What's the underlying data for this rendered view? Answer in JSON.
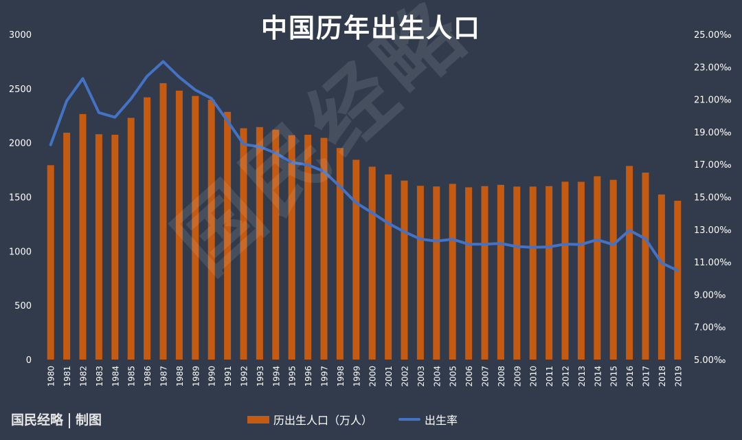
{
  "title": "中国历年出生人口",
  "credit": {
    "org": "国民经略",
    "note": "制图"
  },
  "watermark": "国民经略",
  "colors": {
    "background": "#323b4c",
    "bar": "#c55a11",
    "line": "#4472c4",
    "text": "#ffffff"
  },
  "chart_data": {
    "type": "bar+line",
    "categories": [
      "1980",
      "1981",
      "1982",
      "1983",
      "1984",
      "1985",
      "1986",
      "1987",
      "1988",
      "1989",
      "1990",
      "1991",
      "1992",
      "1993",
      "1994",
      "1995",
      "1996",
      "1997",
      "1998",
      "1999",
      "2000",
      "2001",
      "2002",
      "2003",
      "2004",
      "2005",
      "2006",
      "2007",
      "2008",
      "2009",
      "2010",
      "2011",
      "2012",
      "2013",
      "2014",
      "2015",
      "2016",
      "2017",
      "2018",
      "2019"
    ],
    "series": [
      {
        "name": "历出生人口（万人）",
        "type": "bar",
        "axis": "left",
        "values": [
          1793,
          2093,
          2265,
          2079,
          2074,
          2230,
          2419,
          2550,
          2481,
          2432,
          2397,
          2285,
          2134,
          2145,
          2121,
          2070,
          2074,
          2045,
          1952,
          1843,
          1779,
          1708,
          1651,
          1603,
          1597,
          1621,
          1589,
          1600,
          1612,
          1596,
          1596,
          1600,
          1641,
          1640,
          1691,
          1658,
          1786,
          1725,
          1523,
          1465
        ]
      },
      {
        "name": "出生率",
        "type": "line",
        "axis": "right",
        "values": [
          18.21,
          20.91,
          22.28,
          20.19,
          19.9,
          21.04,
          22.43,
          23.33,
          22.37,
          21.58,
          21.06,
          19.68,
          18.24,
          18.09,
          17.7,
          17.12,
          16.98,
          16.57,
          15.64,
          14.64,
          14.03,
          13.38,
          12.86,
          12.41,
          12.29,
          12.4,
          12.09,
          12.1,
          12.14,
          11.95,
          11.9,
          11.93,
          12.1,
          12.08,
          12.37,
          12.07,
          12.95,
          12.43,
          10.94,
          10.48
        ]
      }
    ],
    "left_axis": {
      "ticks": [
        "0",
        "500",
        "1000",
        "1500",
        "2000",
        "2500",
        "3000"
      ],
      "range": [
        0,
        3000
      ]
    },
    "right_axis": {
      "ticks": [
        "5.00‰",
        "7.00‰",
        "9.00‰",
        "11.00‰",
        "13.00‰",
        "15.00‰",
        "17.00‰",
        "19.00‰",
        "21.00‰",
        "23.00‰",
        "25.00‰"
      ],
      "range": [
        5,
        25
      ]
    },
    "grid": false,
    "legend_position": "bottom"
  }
}
